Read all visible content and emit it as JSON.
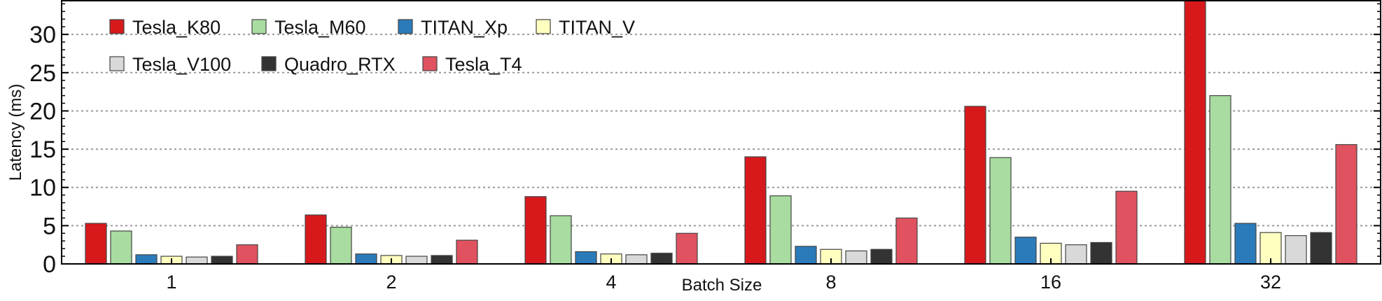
{
  "chart_data": {
    "type": "bar",
    "title": "",
    "xlabel": "Batch Size",
    "ylabel": "Latency (ms)",
    "ylim": [
      0,
      34.5
    ],
    "yticks": [
      0,
      5,
      10,
      15,
      20,
      25,
      30
    ],
    "grid": "horizontal dotted",
    "legend_placement": "top-left",
    "categories": [
      "1",
      "2",
      "4",
      "8",
      "16",
      "32"
    ],
    "series": [
      {
        "name": "Tesla_K80",
        "color": "#d7191c",
        "values": [
          5.3,
          6.4,
          8.8,
          14.0,
          20.6,
          34.5
        ]
      },
      {
        "name": "Tesla_M60",
        "color": "#a8dca0",
        "values": [
          4.3,
          4.8,
          6.3,
          8.9,
          13.9,
          22.0
        ]
      },
      {
        "name": "TITAN_Xp",
        "color": "#2b7bba",
        "values": [
          1.2,
          1.3,
          1.6,
          2.3,
          3.5,
          5.3
        ]
      },
      {
        "name": "TITAN_V",
        "color": "#ffffbf",
        "values": [
          1.0,
          1.1,
          1.3,
          1.9,
          2.7,
          4.1
        ]
      },
      {
        "name": "Tesla_V100",
        "color": "#d9d9d9",
        "values": [
          0.9,
          1.0,
          1.2,
          1.7,
          2.5,
          3.7
        ]
      },
      {
        "name": "Quadro_RTX",
        "color": "#333333",
        "values": [
          1.0,
          1.1,
          1.4,
          1.9,
          2.8,
          4.1
        ]
      },
      {
        "name": "Tesla_T4",
        "color": "#e05260",
        "values": [
          2.5,
          3.1,
          4.0,
          6.0,
          9.5,
          15.6
        ]
      }
    ]
  }
}
